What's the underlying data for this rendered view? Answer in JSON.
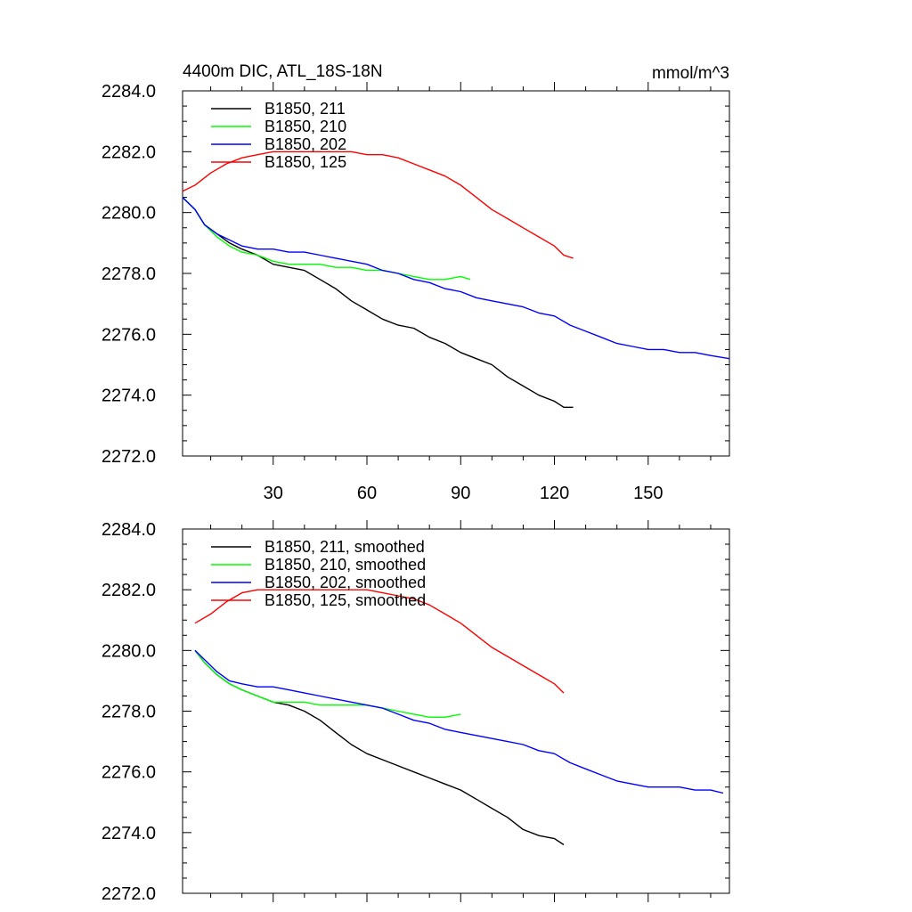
{
  "chart_data": [
    {
      "type": "line",
      "title_left": "4400m DIC, ATL_18S-18N",
      "title_right": "mmol/m^3",
      "xlim": [
        1,
        176
      ],
      "ylim": [
        2272,
        2284
      ],
      "xticks": [
        30,
        60,
        90,
        120,
        150
      ],
      "xtick_labels": [
        "30",
        "60",
        "90",
        "120",
        "150"
      ],
      "yticks": [
        2272,
        2274,
        2276,
        2278,
        2280,
        2282,
        2284
      ],
      "ytick_labels": [
        "2272.0",
        "2274.0",
        "2276.0",
        "2278.0",
        "2280.0",
        "2282.0",
        "2284.0"
      ],
      "show_xtick_labels": true,
      "legend_position": "top-left",
      "series": [
        {
          "name": "B1850, 211",
          "color": "#000000",
          "x": [
            1,
            5,
            8,
            12,
            16,
            20,
            25,
            30,
            35,
            40,
            45,
            50,
            55,
            60,
            65,
            70,
            75,
            80,
            85,
            90,
            95,
            100,
            105,
            110,
            115,
            120,
            123,
            126
          ],
          "y": [
            2280.5,
            2280.1,
            2279.6,
            2279.3,
            2279.0,
            2278.8,
            2278.6,
            2278.3,
            2278.2,
            2278.1,
            2277.8,
            2277.5,
            2277.1,
            2276.8,
            2276.5,
            2276.3,
            2276.2,
            2275.9,
            2275.7,
            2275.4,
            2275.2,
            2275.0,
            2274.6,
            2274.3,
            2274.0,
            2273.8,
            2273.6,
            2273.6
          ]
        },
        {
          "name": "B1850, 210",
          "color": "#00ff00",
          "x": [
            1,
            5,
            8,
            12,
            16,
            20,
            25,
            30,
            35,
            40,
            45,
            50,
            55,
            60,
            65,
            70,
            75,
            80,
            85,
            90,
            93
          ],
          "y": [
            2280.5,
            2280.1,
            2279.6,
            2279.2,
            2278.9,
            2278.7,
            2278.6,
            2278.4,
            2278.3,
            2278.3,
            2278.3,
            2278.2,
            2278.2,
            2278.1,
            2278.1,
            2278.0,
            2277.9,
            2277.8,
            2277.8,
            2277.9,
            2277.8
          ]
        },
        {
          "name": "B1850, 202",
          "color": "#0000ff",
          "x": [
            1,
            5,
            8,
            12,
            16,
            20,
            25,
            30,
            35,
            40,
            45,
            50,
            55,
            60,
            65,
            70,
            75,
            80,
            85,
            90,
            95,
            100,
            105,
            110,
            115,
            120,
            125,
            130,
            135,
            140,
            145,
            150,
            155,
            160,
            165,
            170,
            176
          ],
          "y": [
            2280.5,
            2280.1,
            2279.6,
            2279.3,
            2279.1,
            2278.9,
            2278.8,
            2278.8,
            2278.7,
            2278.7,
            2278.6,
            2278.5,
            2278.4,
            2278.3,
            2278.1,
            2278.0,
            2277.8,
            2277.7,
            2277.5,
            2277.4,
            2277.2,
            2277.1,
            2277.0,
            2276.9,
            2276.7,
            2276.6,
            2276.3,
            2276.1,
            2275.9,
            2275.7,
            2275.6,
            2275.5,
            2275.5,
            2275.4,
            2275.4,
            2275.3,
            2275.2
          ]
        },
        {
          "name": "B1850, 125",
          "color": "#ff0000",
          "x": [
            1,
            5,
            10,
            15,
            20,
            25,
            30,
            35,
            40,
            45,
            50,
            55,
            60,
            65,
            70,
            75,
            80,
            85,
            90,
            95,
            100,
            105,
            110,
            115,
            120,
            123,
            126
          ],
          "y": [
            2280.7,
            2280.9,
            2281.3,
            2281.6,
            2281.8,
            2281.9,
            2282.0,
            2282.0,
            2282.0,
            2282.0,
            2282.0,
            2282.0,
            2281.9,
            2281.9,
            2281.8,
            2281.6,
            2281.4,
            2281.2,
            2280.9,
            2280.5,
            2280.1,
            2279.8,
            2279.5,
            2279.2,
            2278.9,
            2278.6,
            2278.5
          ]
        }
      ]
    },
    {
      "type": "line",
      "xlim": [
        1,
        176
      ],
      "ylim": [
        2272,
        2284
      ],
      "xticks": [
        30,
        60,
        90,
        120,
        150
      ],
      "yticks": [
        2272,
        2274,
        2276,
        2278,
        2280,
        2282,
        2284
      ],
      "ytick_labels": [
        "2272.0",
        "2274.0",
        "2276.0",
        "2278.0",
        "2280.0",
        "2282.0",
        "2284.0"
      ],
      "show_xtick_labels": false,
      "legend_position": "top-left",
      "series": [
        {
          "name": "B1850, 211, smoothed",
          "color": "#000000",
          "x": [
            5,
            8,
            12,
            16,
            20,
            25,
            30,
            35,
            40,
            45,
            50,
            55,
            60,
            65,
            70,
            75,
            80,
            85,
            90,
            95,
            100,
            105,
            110,
            115,
            120,
            123
          ],
          "y": [
            2280.0,
            2279.6,
            2279.2,
            2278.9,
            2278.7,
            2278.5,
            2278.3,
            2278.2,
            2278.0,
            2277.7,
            2277.3,
            2276.9,
            2276.6,
            2276.4,
            2276.2,
            2276.0,
            2275.8,
            2275.6,
            2275.4,
            2275.1,
            2274.8,
            2274.5,
            2274.1,
            2273.9,
            2273.8,
            2273.6
          ]
        },
        {
          "name": "B1850, 210, smoothed",
          "color": "#00ff00",
          "x": [
            5,
            8,
            12,
            16,
            20,
            25,
            30,
            35,
            40,
            45,
            50,
            55,
            60,
            65,
            70,
            75,
            80,
            85,
            90
          ],
          "y": [
            2280.0,
            2279.6,
            2279.2,
            2278.9,
            2278.7,
            2278.5,
            2278.3,
            2278.3,
            2278.3,
            2278.2,
            2278.2,
            2278.2,
            2278.2,
            2278.1,
            2278.0,
            2277.9,
            2277.8,
            2277.8,
            2277.9
          ]
        },
        {
          "name": "B1850, 202, smoothed",
          "color": "#0000ff",
          "x": [
            5,
            8,
            12,
            16,
            20,
            25,
            30,
            35,
            40,
            45,
            50,
            55,
            60,
            65,
            70,
            75,
            80,
            85,
            90,
            95,
            100,
            105,
            110,
            115,
            120,
            125,
            130,
            135,
            140,
            145,
            150,
            155,
            160,
            165,
            170,
            174
          ],
          "y": [
            2280.0,
            2279.7,
            2279.3,
            2279.0,
            2278.9,
            2278.8,
            2278.8,
            2278.7,
            2278.6,
            2278.5,
            2278.4,
            2278.3,
            2278.2,
            2278.1,
            2277.9,
            2277.7,
            2277.6,
            2277.4,
            2277.3,
            2277.2,
            2277.1,
            2277.0,
            2276.9,
            2276.7,
            2276.6,
            2276.3,
            2276.1,
            2275.9,
            2275.7,
            2275.6,
            2275.5,
            2275.5,
            2275.5,
            2275.4,
            2275.4,
            2275.3
          ]
        },
        {
          "name": "B1850, 125, smoothed",
          "color": "#ff0000",
          "x": [
            5,
            10,
            15,
            20,
            25,
            30,
            35,
            40,
            45,
            50,
            55,
            60,
            65,
            70,
            75,
            80,
            85,
            90,
            95,
            100,
            105,
            110,
            115,
            120,
            123
          ],
          "y": [
            2280.9,
            2281.2,
            2281.6,
            2281.9,
            2282.0,
            2282.0,
            2282.0,
            2282.0,
            2282.0,
            2282.0,
            2282.0,
            2282.0,
            2281.9,
            2281.8,
            2281.7,
            2281.5,
            2281.2,
            2280.9,
            2280.5,
            2280.1,
            2279.8,
            2279.5,
            2279.2,
            2278.9,
            2278.6
          ]
        }
      ]
    }
  ]
}
